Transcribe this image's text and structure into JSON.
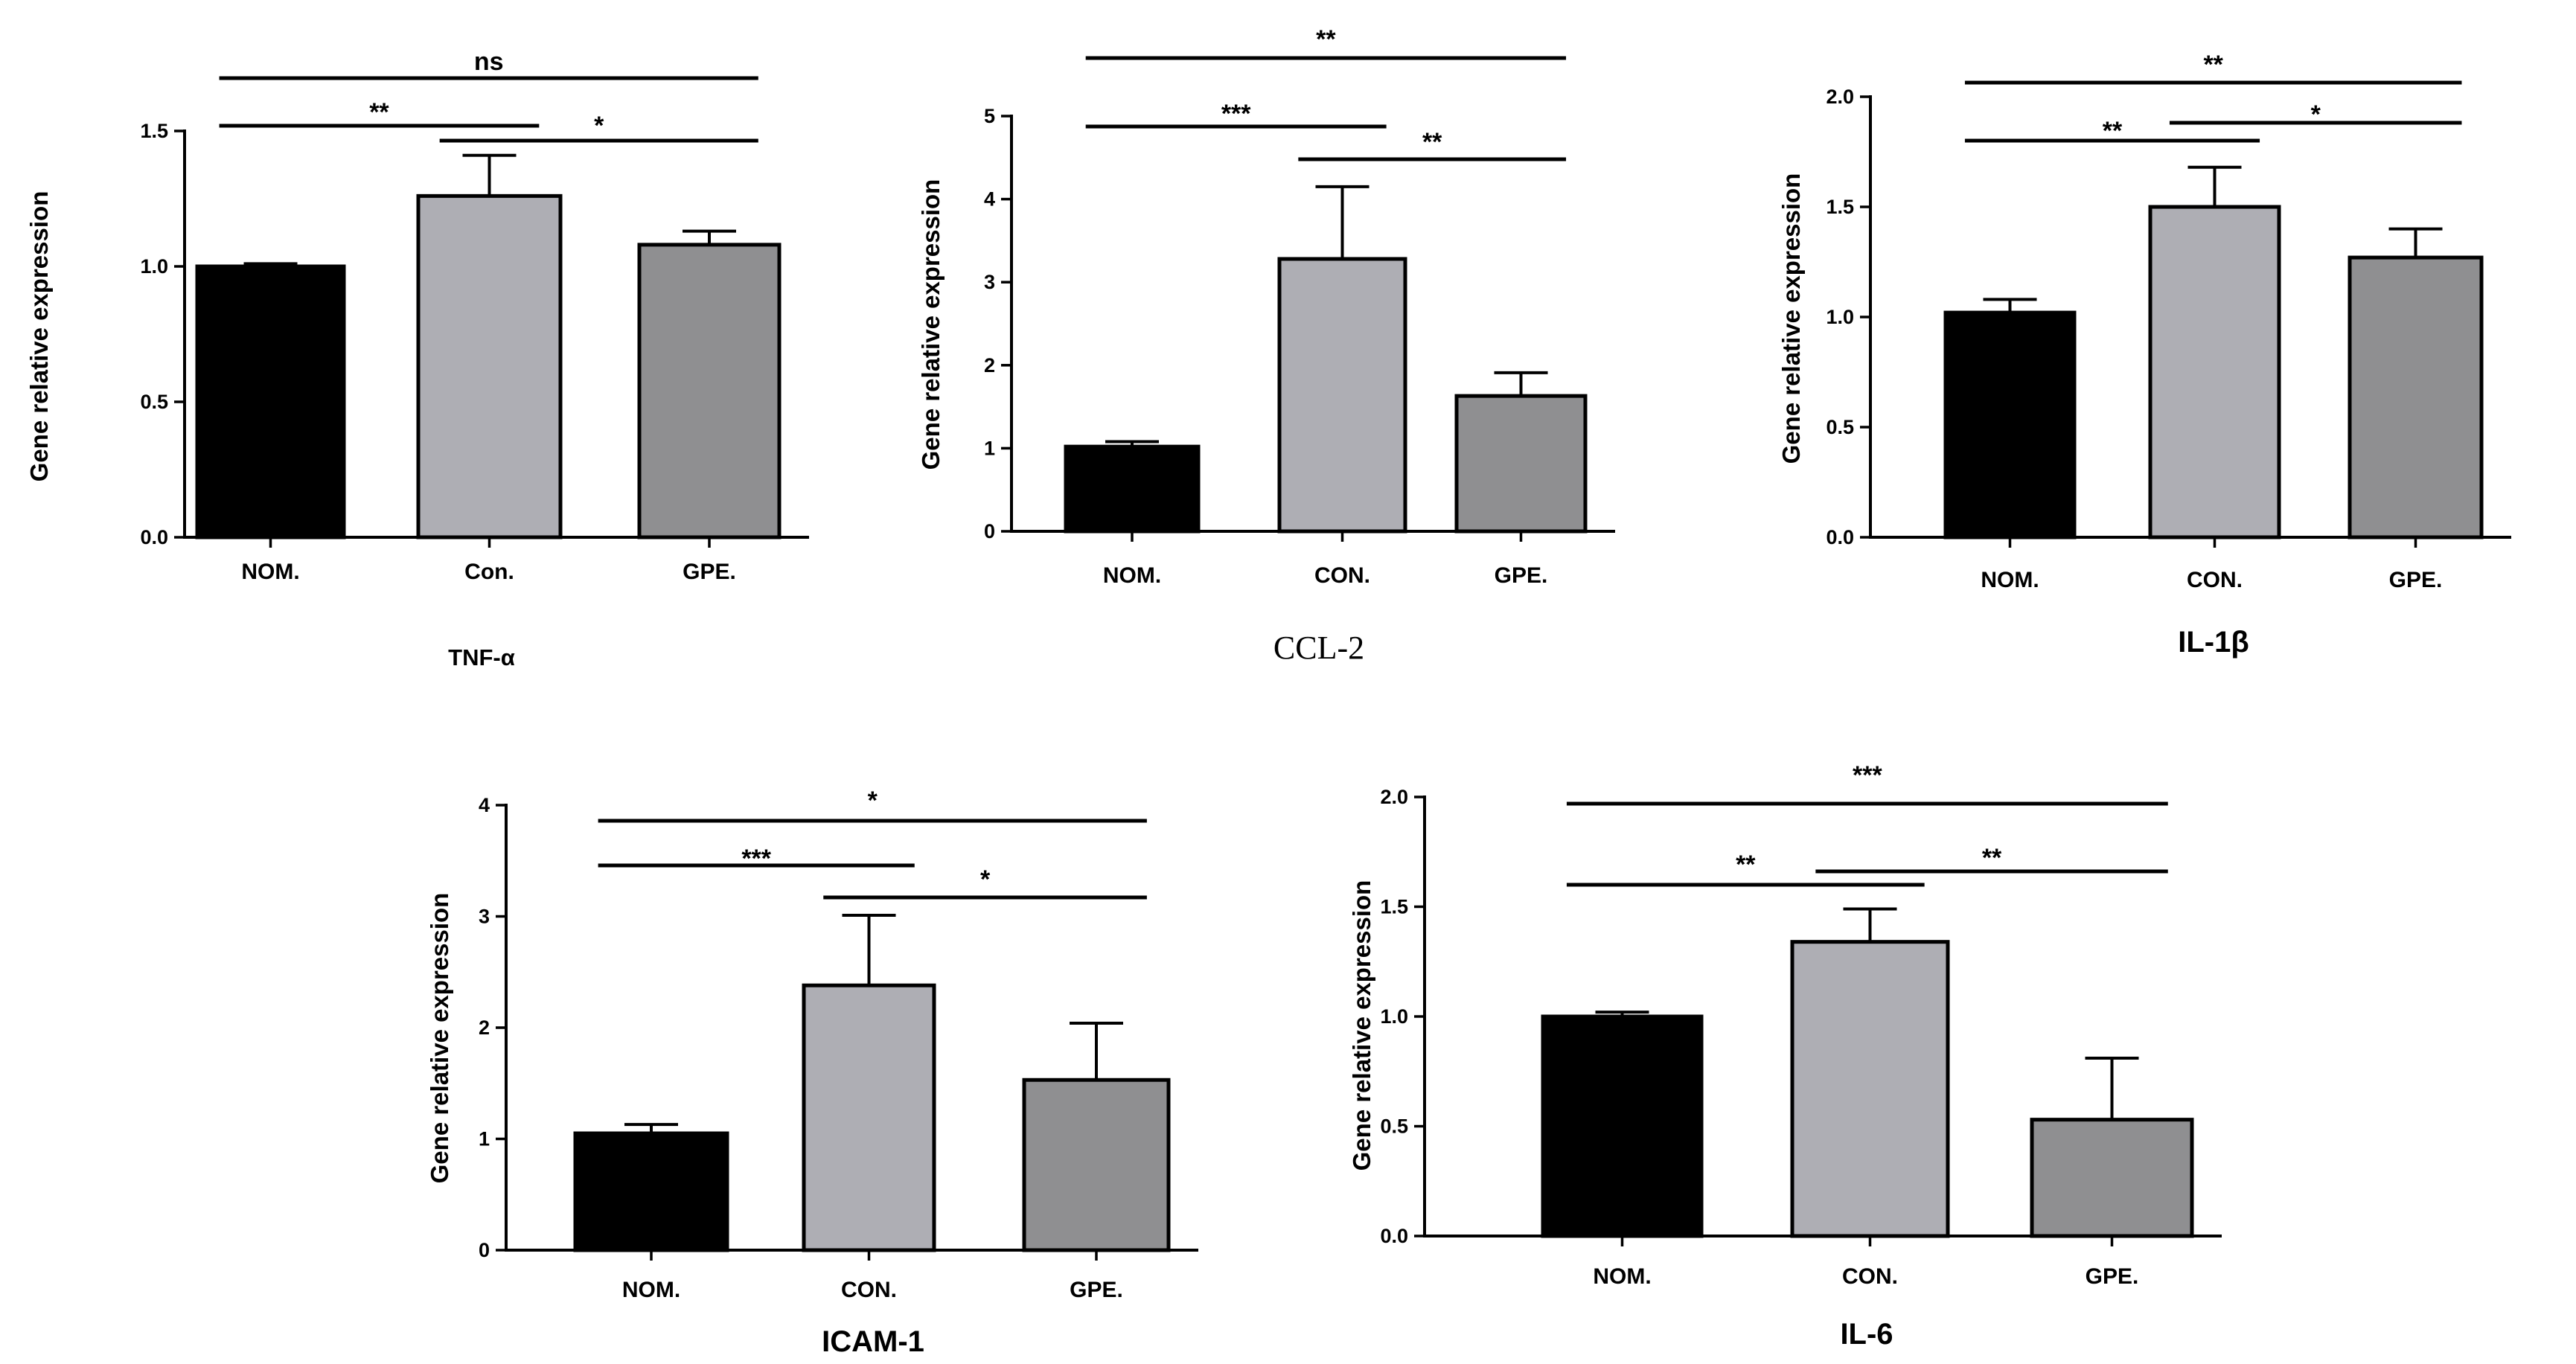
{
  "chart_data": [
    {
      "type": "bar",
      "title": "TNF-α",
      "ylabel": "Gene relative expression",
      "categories": [
        "NOM.",
        "Con.",
        "GPE."
      ],
      "values": [
        1.0,
        1.26,
        1.08
      ],
      "errors": [
        0.01,
        0.15,
        0.05
      ],
      "ylim": [
        0,
        1.5
      ],
      "yticks": [
        "0.0",
        "0.5",
        "1.0",
        "1.5"
      ],
      "colors": [
        "#000000",
        "#aeaeb4",
        "#8f8f91"
      ],
      "significance": [
        {
          "from": 0,
          "to": 1,
          "label": "**"
        },
        {
          "from": 1,
          "to": 2,
          "label": "*"
        },
        {
          "from": 0,
          "to": 2,
          "label": "ns"
        }
      ]
    },
    {
      "type": "bar",
      "title": "CCL-2",
      "ylabel": "Gene relative expression",
      "categories": [
        "NOM.",
        "CON.",
        "GPE."
      ],
      "values": [
        1.02,
        3.28,
        1.63
      ],
      "errors": [
        0.06,
        0.87,
        0.28
      ],
      "ylim": [
        0,
        5
      ],
      "yticks": [
        "0",
        "1",
        "2",
        "3",
        "4",
        "5"
      ],
      "colors": [
        "#000000",
        "#aeaeb4",
        "#8f8f91"
      ],
      "significance": [
        {
          "from": 0,
          "to": 1,
          "label": "***"
        },
        {
          "from": 1,
          "to": 2,
          "label": "**"
        },
        {
          "from": 0,
          "to": 2,
          "label": "**"
        }
      ]
    },
    {
      "type": "bar",
      "title": "IL-1β",
      "ylabel": "Gene relative expression",
      "categories": [
        "NOM.",
        "CON.",
        "GPE."
      ],
      "values": [
        1.02,
        1.5,
        1.27
      ],
      "errors": [
        0.06,
        0.18,
        0.13
      ],
      "ylim": [
        0,
        2.0
      ],
      "yticks": [
        "0.0",
        "0.5",
        "1.0",
        "1.5",
        "2.0"
      ],
      "colors": [
        "#000000",
        "#aeaeb4",
        "#8f8f91"
      ],
      "significance": [
        {
          "from": 0,
          "to": 1,
          "label": "**"
        },
        {
          "from": 1,
          "to": 2,
          "label": "*"
        },
        {
          "from": 0,
          "to": 2,
          "label": "**"
        }
      ]
    },
    {
      "type": "bar",
      "title": "ICAM-1",
      "ylabel": "Gene relative expression",
      "categories": [
        "NOM.",
        "CON.",
        "GPE."
      ],
      "values": [
        1.05,
        2.38,
        1.53
      ],
      "errors": [
        0.08,
        0.63,
        0.51
      ],
      "ylim": [
        0,
        4
      ],
      "yticks": [
        "0",
        "1",
        "2",
        "3",
        "4"
      ],
      "colors": [
        "#000000",
        "#aeaeb4",
        "#8f8f91"
      ],
      "significance": [
        {
          "from": 0,
          "to": 1,
          "label": "***"
        },
        {
          "from": 1,
          "to": 2,
          "label": "*"
        },
        {
          "from": 0,
          "to": 2,
          "label": "*"
        }
      ]
    },
    {
      "type": "bar",
      "title": "IL-6",
      "ylabel": "Gene relative expression",
      "categories": [
        "NOM.",
        "CON.",
        "GPE."
      ],
      "values": [
        1.0,
        1.34,
        0.53
      ],
      "errors": [
        0.02,
        0.15,
        0.28
      ],
      "ylim": [
        0,
        2.0
      ],
      "yticks": [
        "0.0",
        "0.5",
        "1.0",
        "1.5",
        "2.0"
      ],
      "colors": [
        "#000000",
        "#aeaeb4",
        "#8f8f91"
      ],
      "significance": [
        {
          "from": 0,
          "to": 1,
          "label": "**"
        },
        {
          "from": 1,
          "to": 2,
          "label": "**"
        },
        {
          "from": 0,
          "to": 2,
          "label": "***"
        }
      ]
    }
  ]
}
